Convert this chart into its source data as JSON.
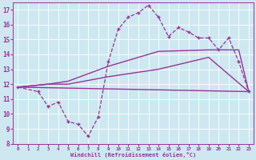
{
  "xlabel": "Windchill (Refroidissement éolien,°C)",
  "bg_color": "#cde8f0",
  "line_color": "#993399",
  "xlim": [
    -0.5,
    23.5
  ],
  "ylim": [
    8,
    17.5
  ],
  "xticks": [
    0,
    1,
    2,
    3,
    4,
    5,
    6,
    7,
    8,
    9,
    10,
    11,
    12,
    13,
    14,
    15,
    16,
    17,
    18,
    19,
    20,
    21,
    22,
    23
  ],
  "yticks": [
    8,
    9,
    10,
    11,
    12,
    13,
    14,
    15,
    16,
    17
  ],
  "series": [
    {
      "x": [
        0,
        23
      ],
      "y": [
        11.8,
        11.5
      ],
      "marker": null,
      "linestyle": "-",
      "lw": 1.0
    },
    {
      "x": [
        0,
        3,
        5,
        9,
        14,
        19,
        23
      ],
      "y": [
        11.8,
        12.0,
        12.0,
        12.5,
        13.0,
        13.8,
        11.5
      ],
      "marker": null,
      "linestyle": "-",
      "lw": 1.0
    },
    {
      "x": [
        0,
        3,
        5,
        9,
        14,
        19,
        22,
        23
      ],
      "y": [
        11.8,
        12.0,
        12.2,
        13.2,
        14.2,
        14.3,
        14.3,
        11.5
      ],
      "marker": null,
      "linestyle": "-",
      "lw": 1.0
    },
    {
      "x": [
        0,
        2,
        3,
        4,
        5,
        6,
        7,
        8,
        9,
        10,
        11,
        12,
        13,
        14,
        15,
        16,
        17,
        18,
        19,
        20,
        21,
        22,
        23
      ],
      "y": [
        11.8,
        11.5,
        10.5,
        10.8,
        9.5,
        9.3,
        8.5,
        9.8,
        13.5,
        15.7,
        16.5,
        16.8,
        17.3,
        16.5,
        15.2,
        15.8,
        15.5,
        15.1,
        15.1,
        14.3,
        15.1,
        13.5,
        11.5
      ],
      "marker": "+",
      "linestyle": "--",
      "lw": 0.9
    }
  ]
}
